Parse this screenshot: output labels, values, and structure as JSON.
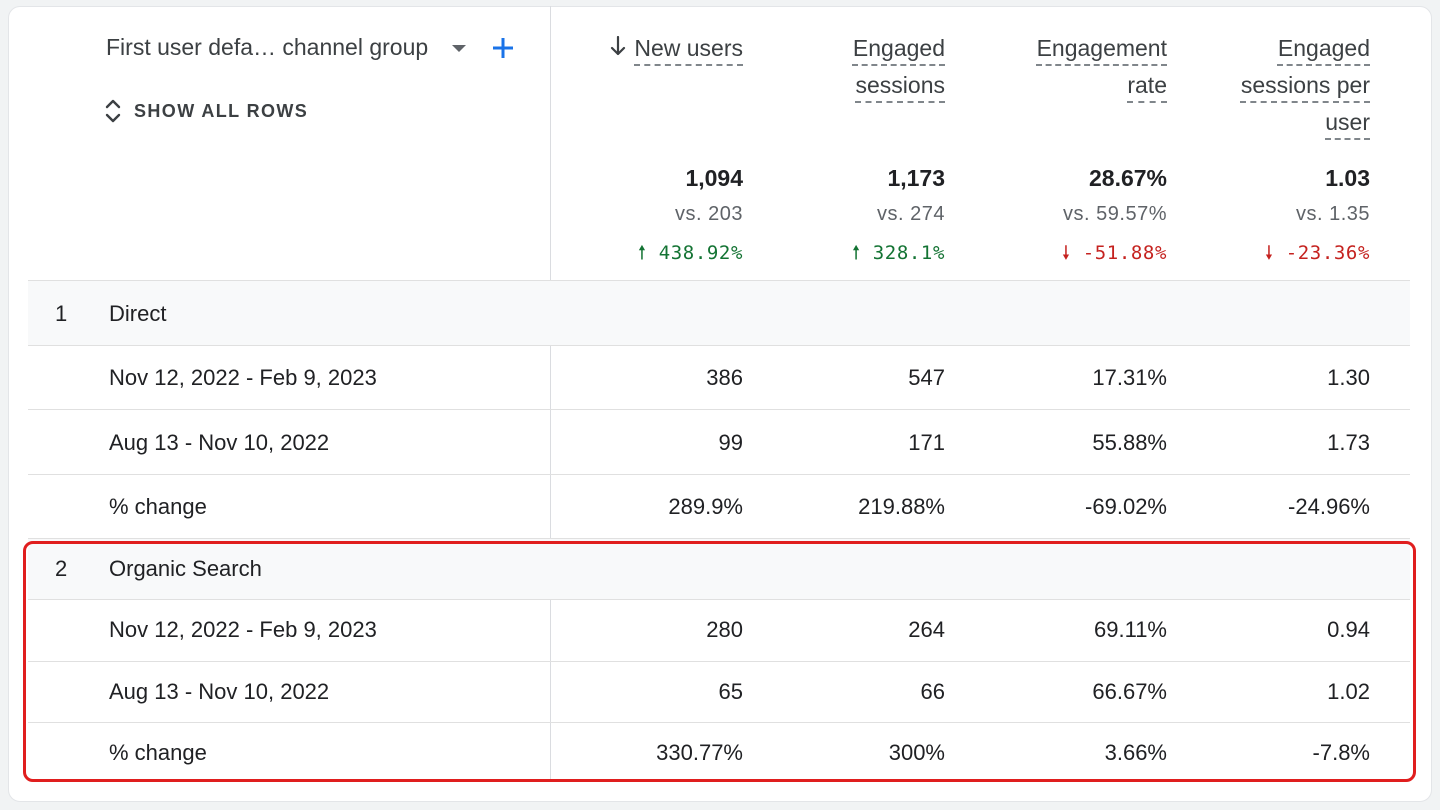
{
  "dimension": {
    "title": "First user defa… channel group",
    "show_all_rows": "SHOW ALL ROWS"
  },
  "columns": [
    {
      "line1": "New users",
      "line2": "",
      "line3": ""
    },
    {
      "line1": "Engaged",
      "line2": "sessions",
      "line3": ""
    },
    {
      "line1": "Engagement",
      "line2": "rate",
      "line3": ""
    },
    {
      "line1": "Engaged",
      "line2": "sessions per",
      "line3": "user"
    }
  ],
  "totals": [
    {
      "value": "1,094",
      "vs": "vs. 203",
      "delta": "438.92%",
      "direction": "up"
    },
    {
      "value": "1,173",
      "vs": "vs. 274",
      "delta": "328.1%",
      "direction": "up"
    },
    {
      "value": "28.67%",
      "vs": "vs. 59.57%",
      "delta": "-51.88%",
      "direction": "down"
    },
    {
      "value": "1.03",
      "vs": "vs. 1.35",
      "delta": "-23.36%",
      "direction": "down"
    }
  ],
  "groups": [
    {
      "num": "1",
      "name": "Direct",
      "rows": [
        {
          "label": "Nov 12, 2022 - Feb 9, 2023",
          "values": [
            "386",
            "547",
            "17.31%",
            "1.30"
          ]
        },
        {
          "label": "Aug 13 - Nov 10, 2022",
          "values": [
            "99",
            "171",
            "55.88%",
            "1.73"
          ]
        },
        {
          "label": "% change",
          "values": [
            "289.9%",
            "219.88%",
            "-69.02%",
            "-24.96%"
          ]
        }
      ]
    },
    {
      "num": "2",
      "name": "Organic Search",
      "rows": [
        {
          "label": "Nov 12, 2022 - Feb 9, 2023",
          "values": [
            "280",
            "264",
            "69.11%",
            "0.94"
          ]
        },
        {
          "label": "Aug 13 - Nov 10, 2022",
          "values": [
            "65",
            "66",
            "66.67%",
            "1.02"
          ]
        },
        {
          "label": "% change",
          "values": [
            "330.77%",
            "300%",
            "3.66%",
            "-7.8%"
          ]
        }
      ]
    }
  ],
  "colors": {
    "up": "#137333",
    "down": "#c5221f",
    "accent": "#1a73e8",
    "highlight": "#e01e1e"
  },
  "icons": {
    "sort": "arrow-down-icon",
    "add": "plus-icon",
    "expand": "unfold-icon",
    "dropdown": "caret-down-icon"
  }
}
